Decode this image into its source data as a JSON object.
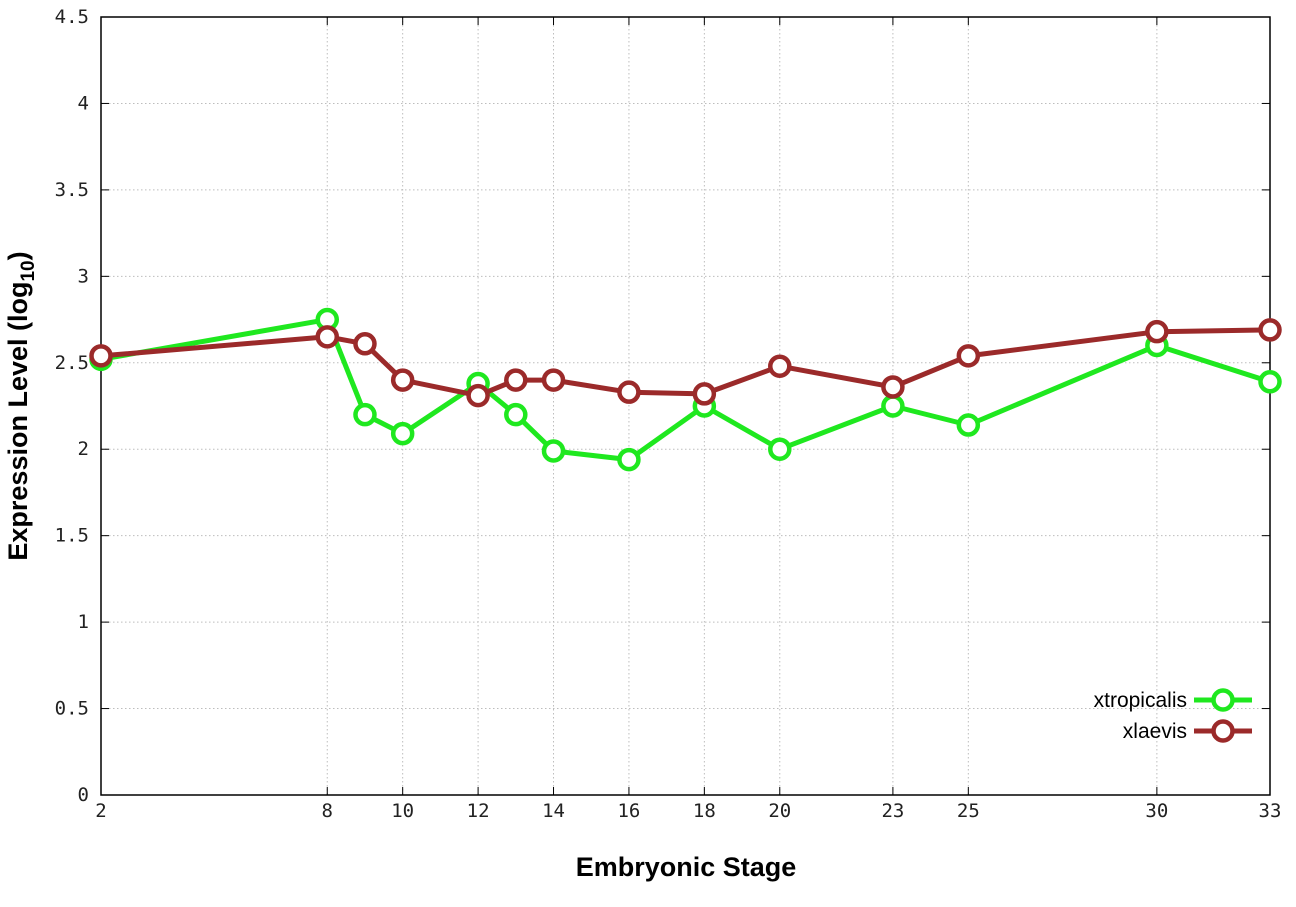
{
  "chart_data": {
    "type": "line",
    "xlabel": "Embryonic Stage",
    "ylabel_main": "Expression Level (log",
    "ylabel_sub": "10",
    "ylabel_close": ")",
    "x_ticks": [
      2,
      8,
      10,
      12,
      14,
      16,
      18,
      20,
      23,
      25,
      30,
      33
    ],
    "y_ticks": [
      "0",
      "0.5",
      "1",
      "1.5",
      "2",
      "2.5",
      "3",
      "3.5",
      "4",
      "4.5"
    ],
    "xlim": [
      2,
      33
    ],
    "ylim": [
      0,
      4.5
    ],
    "grid": true,
    "legend_position": "bottom-right",
    "series": [
      {
        "name": "xtropicalis",
        "color": "#1fe81f",
        "x": [
          2,
          8,
          9,
          10,
          12,
          13,
          14,
          16,
          18,
          20,
          23,
          25,
          30,
          33
        ],
        "y": [
          2.52,
          2.75,
          2.2,
          2.09,
          2.38,
          2.2,
          1.99,
          1.94,
          2.25,
          2.0,
          2.25,
          2.14,
          2.6,
          2.39
        ]
      },
      {
        "name": "xlaevis",
        "color": "#9b2a2a",
        "x": [
          2,
          8,
          9,
          10,
          12,
          13,
          14,
          16,
          18,
          20,
          23,
          25,
          30,
          33
        ],
        "y": [
          2.54,
          2.65,
          2.61,
          2.4,
          2.31,
          2.4,
          2.4,
          2.33,
          2.32,
          2.48,
          2.36,
          2.54,
          2.68,
          2.69
        ]
      }
    ]
  }
}
